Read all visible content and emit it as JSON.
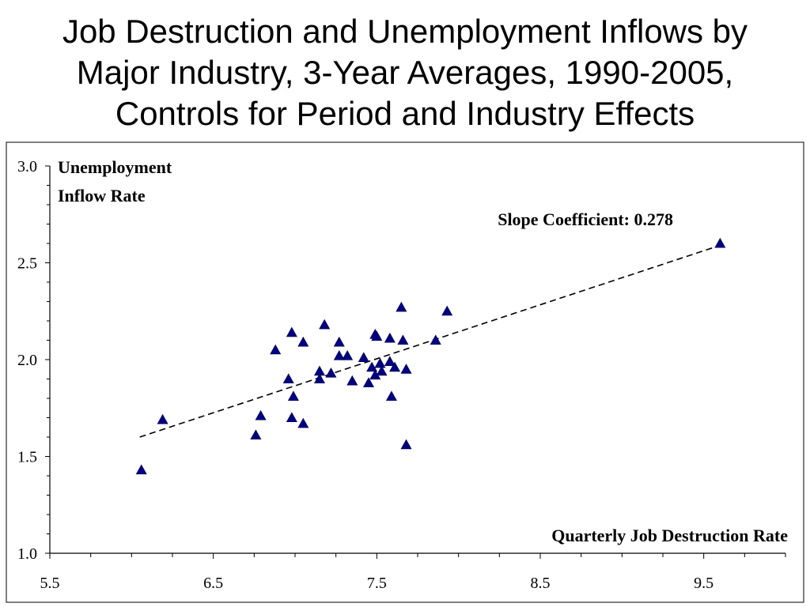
{
  "title_lines": [
    "Job Destruction and Unemployment Inflows by",
    "Major Industry, 3-Year Averages, 1990-2005,",
    "Controls for Period and Industry Effects"
  ],
  "chart_data": {
    "type": "scatter",
    "title": "Job Destruction and Unemployment Inflows by Major Industry, 3-Year Averages, 1990-2005, Controls for Period and Industry Effects",
    "xlabel": "Quarterly Job Destruction Rate",
    "ylabel_lines": [
      "Unemployment",
      "Inflow Rate"
    ],
    "annotation": "Slope Coefficient: 0.278",
    "xlim": [
      5.5,
      10.0
    ],
    "ylim": [
      1.0,
      3.0
    ],
    "x_ticks": [
      5.5,
      6.5,
      7.5,
      8.5,
      9.5
    ],
    "x_tick_labels": [
      "5.5",
      "6.5",
      "7.5",
      "8.5",
      "9.5"
    ],
    "y_ticks": [
      1.0,
      1.5,
      2.0,
      2.5,
      3.0
    ],
    "y_tick_labels": [
      "1.0",
      "1.5",
      "2.0",
      "2.5",
      "3.0"
    ],
    "grid": false,
    "marker_color": "#000080",
    "trend_line": {
      "x": [
        6.05,
        9.6
      ],
      "y": [
        1.6,
        2.59
      ],
      "style": "dashed",
      "color": "#000000"
    },
    "points": [
      {
        "x": 6.06,
        "y": 1.43
      },
      {
        "x": 6.19,
        "y": 1.69
      },
      {
        "x": 6.76,
        "y": 1.61
      },
      {
        "x": 6.79,
        "y": 1.71
      },
      {
        "x": 6.88,
        "y": 2.05
      },
      {
        "x": 6.96,
        "y": 1.9
      },
      {
        "x": 6.98,
        "y": 2.14
      },
      {
        "x": 6.98,
        "y": 1.7
      },
      {
        "x": 6.99,
        "y": 1.81
      },
      {
        "x": 7.05,
        "y": 2.09
      },
      {
        "x": 7.05,
        "y": 1.67
      },
      {
        "x": 7.15,
        "y": 1.94
      },
      {
        "x": 7.15,
        "y": 1.9
      },
      {
        "x": 7.18,
        "y": 2.18
      },
      {
        "x": 7.22,
        "y": 1.93
      },
      {
        "x": 7.27,
        "y": 2.09
      },
      {
        "x": 7.27,
        "y": 2.02
      },
      {
        "x": 7.32,
        "y": 2.02
      },
      {
        "x": 7.35,
        "y": 1.89
      },
      {
        "x": 7.42,
        "y": 2.01
      },
      {
        "x": 7.45,
        "y": 1.88
      },
      {
        "x": 7.47,
        "y": 1.96
      },
      {
        "x": 7.49,
        "y": 2.13
      },
      {
        "x": 7.5,
        "y": 2.12
      },
      {
        "x": 7.49,
        "y": 1.92
      },
      {
        "x": 7.52,
        "y": 1.98
      },
      {
        "x": 7.53,
        "y": 1.94
      },
      {
        "x": 7.58,
        "y": 2.11
      },
      {
        "x": 7.58,
        "y": 1.99
      },
      {
        "x": 7.59,
        "y": 1.81
      },
      {
        "x": 7.61,
        "y": 1.96
      },
      {
        "x": 7.65,
        "y": 2.27
      },
      {
        "x": 7.66,
        "y": 2.1
      },
      {
        "x": 7.68,
        "y": 1.95
      },
      {
        "x": 7.68,
        "y": 1.56
      },
      {
        "x": 7.86,
        "y": 2.1
      },
      {
        "x": 7.93,
        "y": 2.25
      },
      {
        "x": 9.6,
        "y": 2.6
      }
    ]
  }
}
